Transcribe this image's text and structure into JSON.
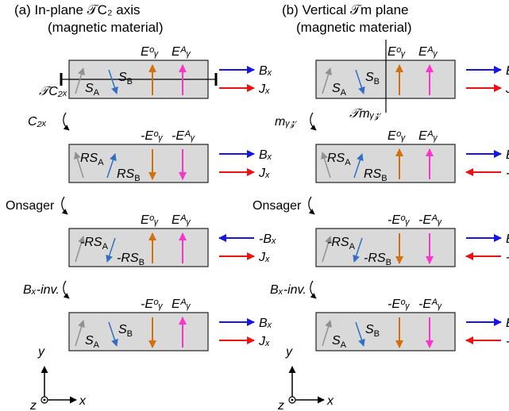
{
  "colors": {
    "box_fill": "#d9d9d9",
    "box_stroke": "#222222",
    "orange": "#d4700b",
    "magenta": "#ff33cc",
    "blue": "#1515e6",
    "red": "#ee1111",
    "blue_text": "#2f6fc4",
    "gray_text": "#909090"
  },
  "panel_a": {
    "title_line1": "(a) In-plane 𝒯C₂ axis",
    "title_line2": "(magnetic material)",
    "axis_label": "𝒯C₂ₓ",
    "steps": [
      {
        "label": "",
        "sA": "S",
        "sB": "S",
        "ey1": "Eᵒᵧ",
        "ey2": "Eᴬᵧ",
        "bx": "Bₓ",
        "jx": "Jₓ"
      },
      {
        "label": "C₂ₓ",
        "sA": "RS",
        "sB": "RS",
        "ey1": "-Eᵒᵧ",
        "ey2": "-Eᴬᵧ",
        "bx": "Bₓ",
        "jx": "Jₓ"
      },
      {
        "label": "Onsager",
        "sA": "-RS",
        "sB": "-RS",
        "ey1": "Eᵒᵧ",
        "ey2": "Eᴬᵧ",
        "bx": "-Bₓ",
        "jx": "Jₓ"
      },
      {
        "label": "Bₓ-inv.",
        "sA": "S",
        "sB": "S",
        "ey1": "-Eᵒᵧ",
        "ey2": "Eᴬᵧ",
        "bx": "Bₓ",
        "jx": "Jₓ"
      }
    ]
  },
  "panel_b": {
    "title_line1": "(b) Vertical 𝒯m plane",
    "title_line2": "(magnetic material)",
    "plane_label": "𝒯mᵧ𝓏",
    "steps": [
      {
        "label": "",
        "sA": "S",
        "sB": "S",
        "ey1": "Eᵒᵧ",
        "ey2": "Eᴬᵧ",
        "bx": "Bₓ",
        "jx": "Jₓ"
      },
      {
        "label": "mᵧ𝓏",
        "sA": "RS",
        "sB": "RS",
        "ey1": "Eᵒᵧ",
        "ey2": "Eᴬᵧ",
        "bx": "Bₓ",
        "jx": "-Jₓ"
      },
      {
        "label": "Onsager",
        "sA": "-RS",
        "sB": "-RS",
        "ey1": "-Eᵒᵧ",
        "ey2": "-Eᴬᵧ",
        "bx": "Bₓ",
        "jx": "-Jₓ"
      },
      {
        "label": "Bₓ-inv.",
        "sA": "S",
        "sB": "S",
        "ey1": "-Eᵒᵧ",
        "ey2": "-Eᴬᵧ",
        "bx": "Bₓ",
        "jx": "-Jₓ"
      }
    ]
  },
  "axes": {
    "y": "y",
    "x": "x",
    "z": "z"
  },
  "subscripts": {
    "A": "A",
    "B": "B"
  }
}
